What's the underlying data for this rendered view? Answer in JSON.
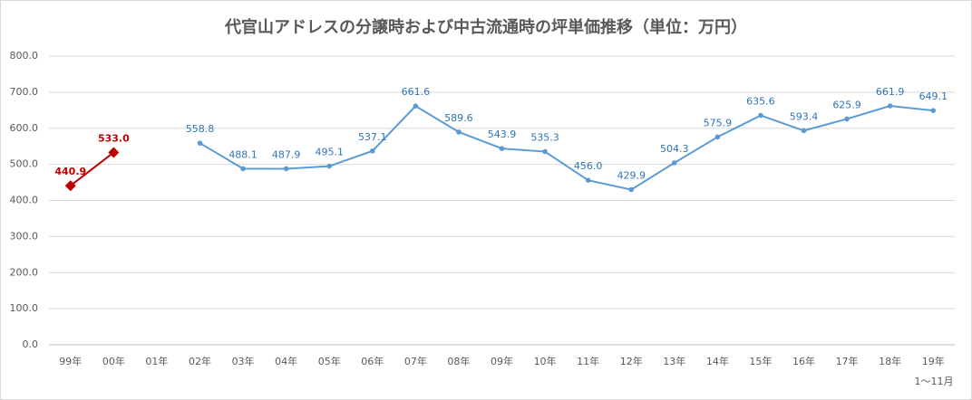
{
  "chart_data": {
    "type": "line",
    "title": "代官山アドレスの分譲時および中古流通時の坪単価推移（単位：万円）",
    "categories": [
      "99年",
      "00年",
      "01年",
      "02年",
      "03年",
      "04年",
      "05年",
      "06年",
      "07年",
      "08年",
      "09年",
      "10年",
      "11年",
      "12年",
      "13年",
      "14年",
      "15年",
      "16年",
      "17年",
      "18年",
      "19年"
    ],
    "series": [
      {
        "color": "#c00000",
        "marker": "diamond",
        "values": [
          440.9,
          533.0,
          null,
          null,
          null,
          null,
          null,
          null,
          null,
          null,
          null,
          null,
          null,
          null,
          null,
          null,
          null,
          null,
          null,
          null,
          null
        ],
        "value_labels": [
          "440.9",
          "533.0",
          null,
          null,
          null,
          null,
          null,
          null,
          null,
          null,
          null,
          null,
          null,
          null,
          null,
          null,
          null,
          null,
          null,
          null,
          null
        ]
      },
      {
        "color": "#5b9bd5",
        "marker": "circle",
        "values": [
          null,
          null,
          null,
          558.8,
          488.1,
          487.9,
          495.1,
          537.1,
          661.6,
          589.6,
          543.9,
          535.3,
          456.0,
          429.9,
          504.3,
          575.9,
          635.6,
          593.4,
          625.9,
          661.9,
          649.1
        ],
        "value_labels": [
          null,
          null,
          null,
          "558.8",
          "488.1",
          "487.9",
          "495.1",
          "537.1",
          "661.6",
          "589.6",
          "543.9",
          "535.3",
          "456.0",
          "429.9",
          "504.3",
          "575.9",
          "635.6",
          "593.4",
          "625.9",
          "661.9",
          "649.1"
        ]
      }
    ],
    "ylim": [
      0,
      800
    ],
    "yticks": [
      {
        "value": 0,
        "label": "0.0"
      },
      {
        "value": 100,
        "label": "100.0"
      },
      {
        "value": 200,
        "label": "200.0"
      },
      {
        "value": 300,
        "label": "300.0"
      },
      {
        "value": 400,
        "label": "400.0"
      },
      {
        "value": 500,
        "label": "500.0"
      },
      {
        "value": 600,
        "label": "600.0"
      },
      {
        "value": 700,
        "label": "700.0"
      },
      {
        "value": 800,
        "label": "800.0"
      }
    ],
    "grid": true,
    "annotation": "1〜11月"
  }
}
